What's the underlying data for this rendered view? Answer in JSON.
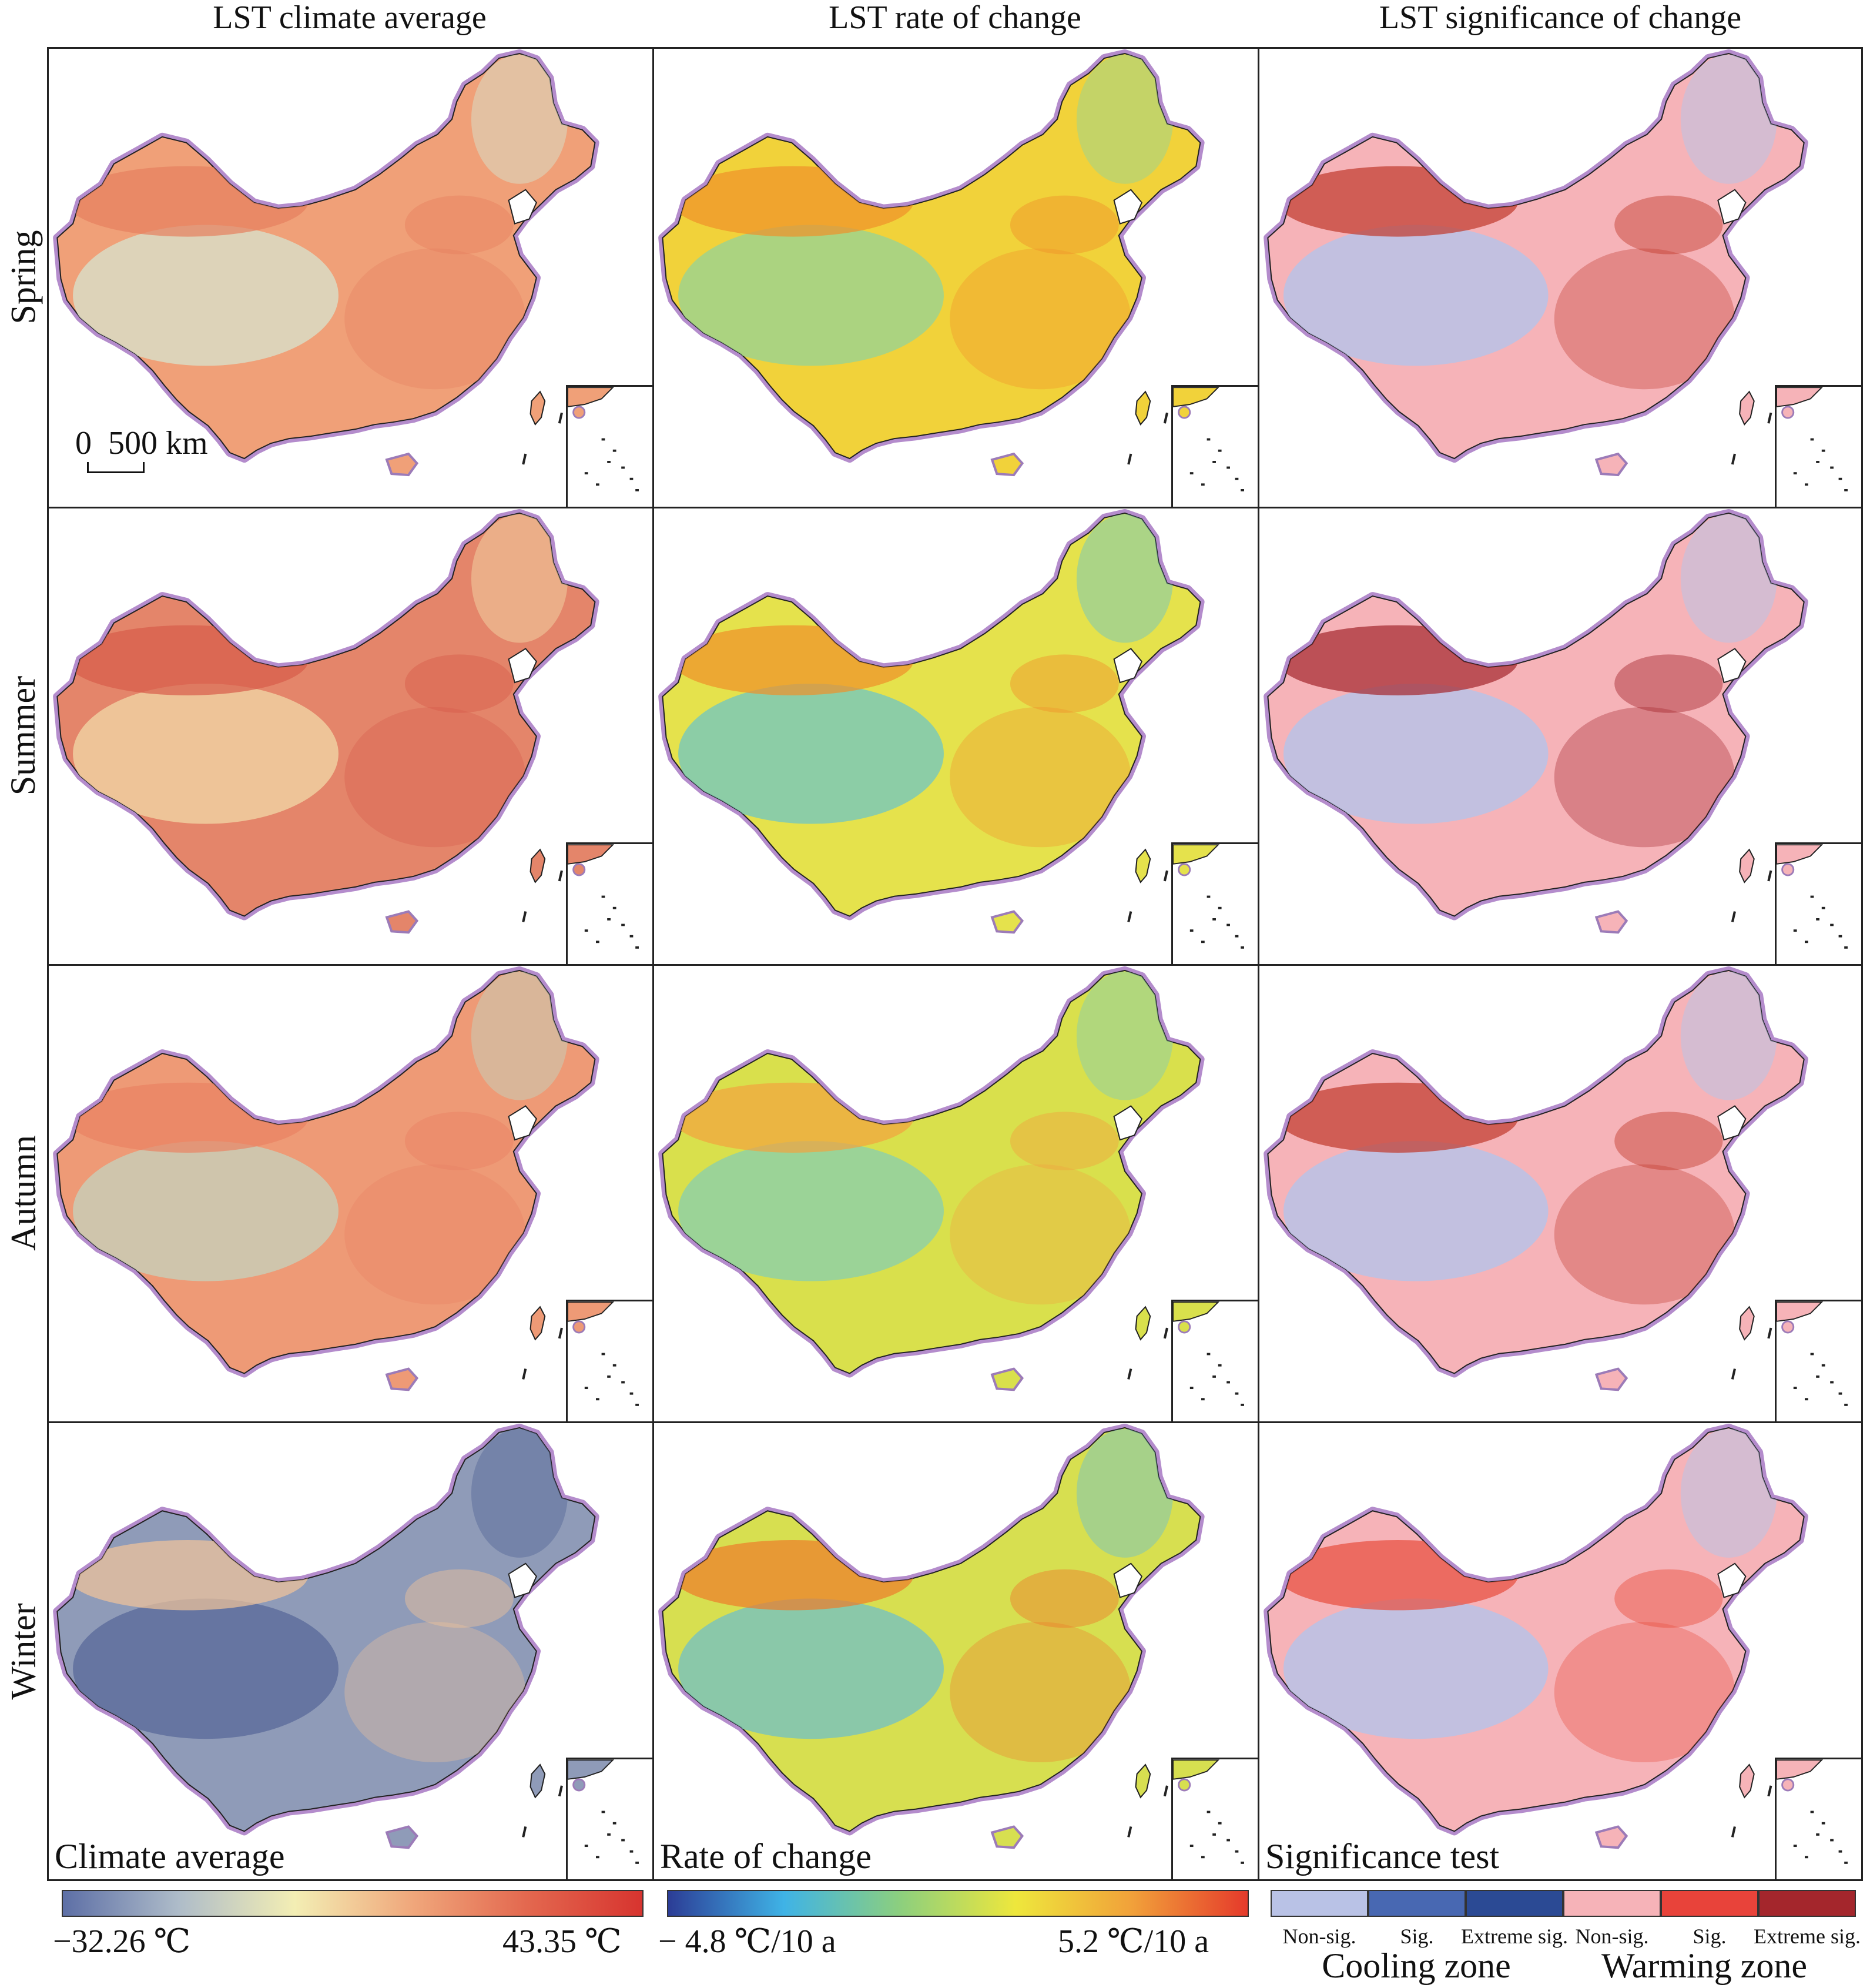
{
  "columns": [
    {
      "title": "LST climate average",
      "kind": "avg"
    },
    {
      "title": "LST rate of change",
      "kind": "rate"
    },
    {
      "title": "LST significance of change",
      "kind": "sig"
    }
  ],
  "rows": [
    {
      "label": "Spring",
      "avg": "#f0a078",
      "rate": "#f1d23a",
      "sig": "#f6b3b8",
      "avg_hi": "#e67f5e",
      "rate_hi": "#f0902a",
      "sig_hi": "#c0392b",
      "avg_lo": "#d9dcc4",
      "rate_lo": "#9fd38d",
      "sig_lo": "#b9c2e6"
    },
    {
      "label": "Summer",
      "avg": "#e4856a",
      "rate": "#e5e24c",
      "sig": "#f6b3b8",
      "avg_hi": "#d75b4a",
      "rate_hi": "#f0902a",
      "sig_hi": "#a4262c",
      "avg_lo": "#f0cfa0",
      "rate_lo": "#7cc9b6",
      "sig_lo": "#b9c2e6"
    },
    {
      "label": "Autumn",
      "avg": "#ee9a76",
      "rate": "#d9e04c",
      "sig": "#f6b3b8",
      "avg_hi": "#e98163",
      "rate_hi": "#f2a23e",
      "sig_hi": "#c0392b",
      "avg_lo": "#c9cdb6",
      "rate_lo": "#8fd0a4",
      "sig_lo": "#b9c2e6"
    },
    {
      "label": "Winter",
      "avg": "#8f9bb8",
      "rate": "#d7df50",
      "sig": "#f6b3b8",
      "avg_hi": "#f2c49a",
      "rate_hi": "#ee7a2a",
      "sig_hi": "#e84d3c",
      "avg_lo": "#5f6f9c",
      "rate_lo": "#7dc4b8",
      "sig_lo": "#b9c2e6"
    }
  ],
  "scale_bar": {
    "label": "0  500 km"
  },
  "captions": {
    "avg": "Climate average",
    "rate": "Rate of change",
    "sig": "Significance test"
  },
  "legend_avg": {
    "min": "−32.26 ℃",
    "max": "43.35 ℃",
    "colors": [
      "#5d6fa6",
      "#aebcc9",
      "#f3eeb4",
      "#f0a87c",
      "#e3684f",
      "#d7342f"
    ]
  },
  "legend_rate": {
    "min": "− 4.8 ℃/10 a",
    "max": "5.2 ℃/10 a",
    "colors": [
      "#2c3d96",
      "#3fb3e6",
      "#8ccf7e",
      "#eee73c",
      "#f1a13a",
      "#e53a2b"
    ]
  },
  "legend_sig": {
    "classes": [
      {
        "label": "Non-sig.",
        "color": "#b9c2e6"
      },
      {
        "label": "Sig.",
        "color": "#4868b2"
      },
      {
        "label": "Extreme sig.",
        "color": "#2b4a94"
      },
      {
        "label": "Non-sig.",
        "color": "#f6b3b8"
      },
      {
        "label": "Sig.",
        "color": "#e8433a"
      },
      {
        "label": "Extreme sig.",
        "color": "#a4262c"
      }
    ],
    "zones": [
      "Cooling zone",
      "Warming zone"
    ]
  }
}
